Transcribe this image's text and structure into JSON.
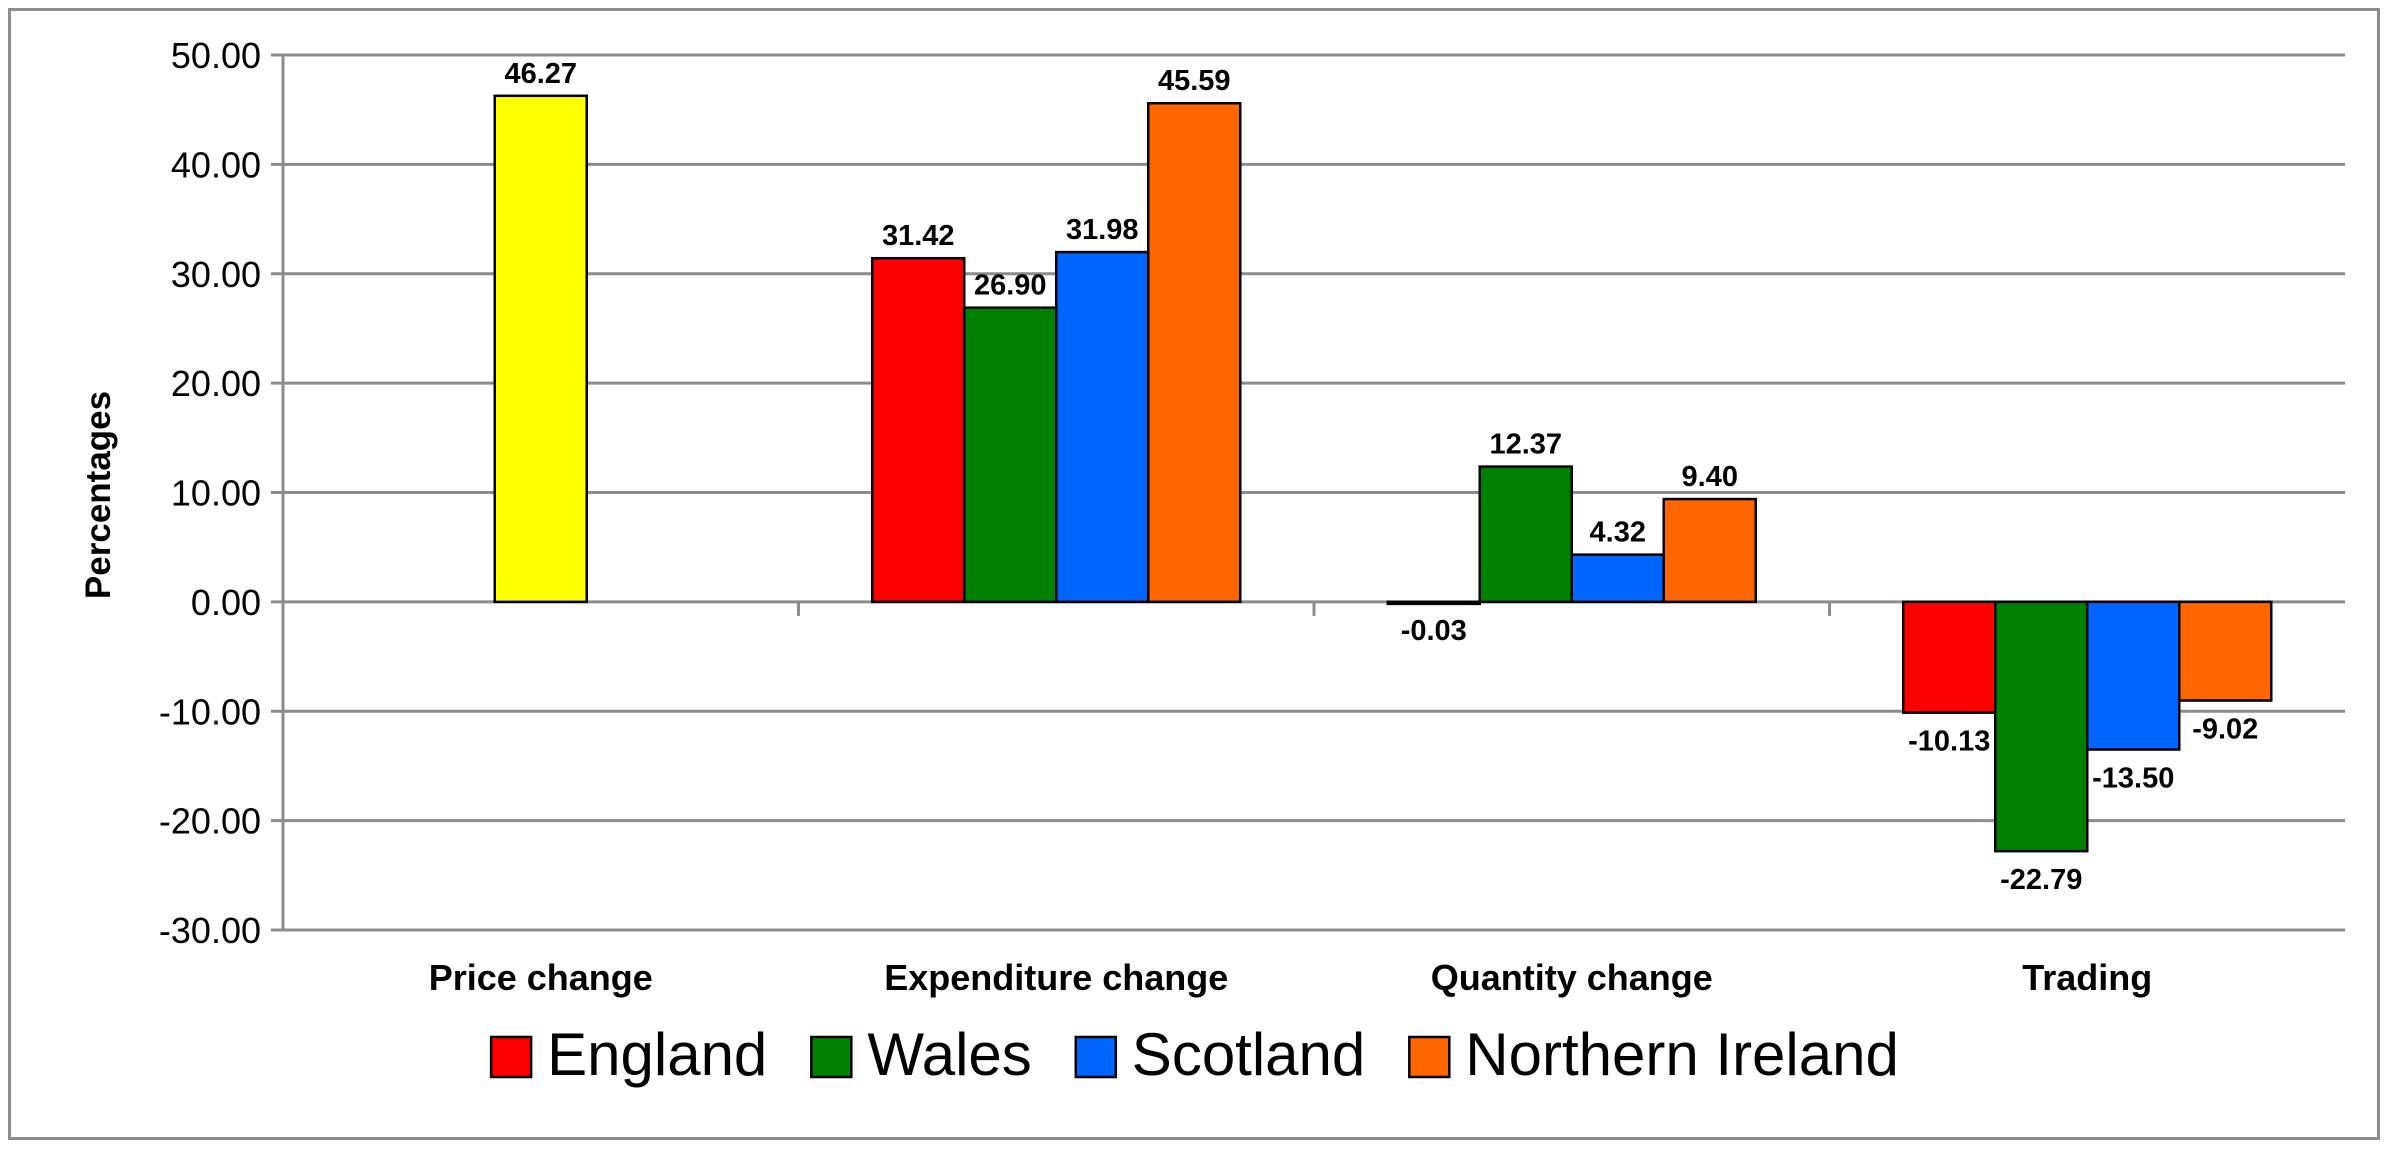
{
  "chart_data": {
    "type": "bar",
    "title": "",
    "xlabel": "",
    "ylabel": "Percentages",
    "ylim": [
      -30,
      50
    ],
    "ytick_step": 10,
    "ytick_labels": [
      "50.00",
      "40.00",
      "30.00",
      "20.00",
      "10.00",
      "0.00",
      "-10.00",
      "-20.00",
      "-30.00"
    ],
    "grid": true,
    "legend_position": "bottom",
    "categories": [
      "Price change",
      "Expenditure change",
      "Quantity change",
      "Trading"
    ],
    "price_change": {
      "value": 46.27,
      "label": "46.27",
      "color": "#FFFF00"
    },
    "series": [
      {
        "name": "England",
        "color": "#FF0000",
        "values": [
          null,
          31.42,
          -0.03,
          -10.13
        ],
        "labels": [
          null,
          "31.42",
          "-0.03",
          "-10.13"
        ]
      },
      {
        "name": "Wales",
        "color": "#008000",
        "values": [
          null,
          26.9,
          12.37,
          -22.79
        ],
        "labels": [
          null,
          "26.90",
          "12.37",
          "-22.79"
        ]
      },
      {
        "name": "Scotland",
        "color": "#0066FF",
        "values": [
          null,
          31.98,
          4.32,
          -13.5
        ],
        "labels": [
          null,
          "31.98",
          "4.32",
          "-13.50"
        ]
      },
      {
        "name": "Northern Ireland",
        "color": "#FF6600",
        "values": [
          null,
          45.59,
          9.4,
          -9.02
        ],
        "labels": [
          null,
          "45.59",
          "9.40",
          "-9.02"
        ]
      }
    ]
  }
}
